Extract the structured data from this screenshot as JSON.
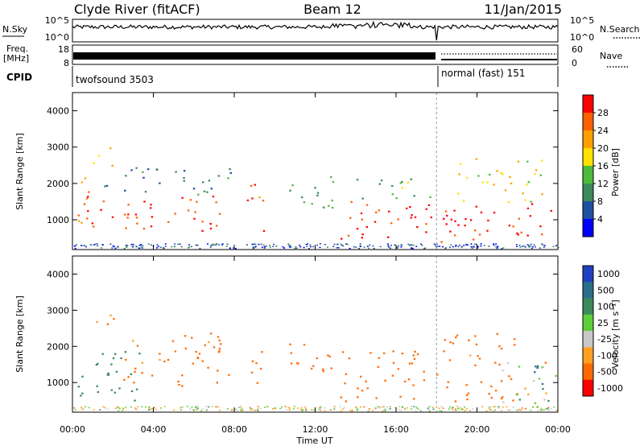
{
  "header": {
    "station": "Clyde River (fitACF)",
    "beam": "Beam 12",
    "date": "11/Jan/2015"
  },
  "sky_panel": {
    "left_label": "N.Sky",
    "right_label": "N.Search",
    "left_ticks": [
      "10^5",
      "10^0"
    ],
    "right_ticks": [
      "10^5",
      "10^0"
    ]
  },
  "freq_panel": {
    "left_label_1": "Freq.",
    "left_label_2": "[MHz]",
    "left_ticks": [
      "18",
      "8"
    ],
    "right_label": "Nave",
    "right_ticks": [
      "60",
      "0"
    ]
  },
  "cpid": {
    "label": "CPID",
    "modes": [
      {
        "name": "twofsound 3503",
        "start_h": 0,
        "end_h": 18
      },
      {
        "name": "normal (fast) 151",
        "start_h": 18,
        "end_h": 24
      }
    ]
  },
  "x_axis": {
    "label": "Time UT",
    "ticks": [
      "00:00",
      "04:00",
      "08:00",
      "12:00",
      "16:00",
      "20:00",
      "00:00"
    ]
  },
  "colors": {
    "power": [
      "#0000ff",
      "#2050a0",
      "#3a8a5a",
      "#4cbb3c",
      "#ffe000",
      "#ffa000",
      "#ff6000",
      "#ff0000"
    ],
    "velocity": [
      "#2040c0",
      "#2a6e8a",
      "#3a8a5a",
      "#5ecf3a",
      "#c8c8c8",
      "#ffa020",
      "#ff6a00",
      "#ff0000"
    ]
  },
  "chart_data": [
    {
      "type": "heatmap",
      "panel": "power",
      "title": "",
      "xlabel": "Time UT",
      "ylabel": "Slant Range [km]",
      "xlim": [
        0,
        24
      ],
      "ylim": [
        180,
        4500
      ],
      "yticks": [
        "1000",
        "2000",
        "3000",
        "4000"
      ],
      "colorbar": {
        "label": "Power [dB]",
        "range": [
          0,
          32
        ],
        "ticks": [
          "4",
          "8",
          "12",
          "16",
          "20",
          "24",
          "28"
        ]
      },
      "regions": [
        {
          "t0": 0.2,
          "t1": 1.0,
          "r0": 700,
          "r1": 2300,
          "level": 26
        },
        {
          "t0": 1.0,
          "t1": 2.2,
          "r0": 2500,
          "r1": 3100,
          "level": 22
        },
        {
          "t0": 0.5,
          "t1": 7.5,
          "r0": 700,
          "r1": 1700,
          "level": 28
        },
        {
          "t0": 1.5,
          "t1": 7.8,
          "r0": 1700,
          "r1": 2500,
          "level": 9
        },
        {
          "t0": 8.5,
          "t1": 9.5,
          "r0": 700,
          "r1": 2000,
          "level": 26
        },
        {
          "t0": 10.5,
          "t1": 13.0,
          "r0": 1300,
          "r1": 2300,
          "level": 12
        },
        {
          "t0": 13.2,
          "t1": 18.0,
          "r0": 500,
          "r1": 1600,
          "level": 29
        },
        {
          "t0": 13.8,
          "t1": 18.0,
          "r0": 1600,
          "r1": 2200,
          "level": 14
        },
        {
          "t0": 18.2,
          "t1": 24.0,
          "r0": 400,
          "r1": 1500,
          "level": 30
        },
        {
          "t0": 18.8,
          "t1": 23.3,
          "r0": 1500,
          "r1": 2700,
          "level": 19
        }
      ]
    },
    {
      "type": "heatmap",
      "panel": "velocity",
      "title": "",
      "xlabel": "Time UT",
      "ylabel": "Slant Range [km]",
      "xlim": [
        0,
        24
      ],
      "ylim": [
        180,
        4500
      ],
      "yticks": [
        "1000",
        "2000",
        "3000",
        "4000"
      ],
      "colorbar": {
        "label": "Velocity [m s⁻¹]",
        "ticks": [
          "1000",
          "500",
          "100",
          "25",
          "-25",
          "-100",
          "-500",
          "-1000"
        ]
      },
      "regions": [
        {
          "t0": 0.2,
          "t1": 3.5,
          "r0": 500,
          "r1": 1900,
          "level": 300
        },
        {
          "t0": 1.0,
          "t1": 2.2,
          "r0": 2500,
          "r1": 3100,
          "level": -150
        },
        {
          "t0": 2.5,
          "t1": 7.8,
          "r0": 900,
          "r1": 2400,
          "level": -200
        },
        {
          "t0": 8.5,
          "t1": 9.5,
          "r0": 1000,
          "r1": 2000,
          "level": -250
        },
        {
          "t0": 10.5,
          "t1": 13.0,
          "r0": 1300,
          "r1": 2300,
          "level": -300
        },
        {
          "t0": 13.2,
          "t1": 18.0,
          "r0": 500,
          "r1": 1900,
          "level": -250
        },
        {
          "t0": 18.2,
          "t1": 22.0,
          "r0": 500,
          "r1": 2400,
          "level": -200
        },
        {
          "t0": 21.0,
          "t1": 24.0,
          "r0": 400,
          "r1": 1600,
          "level": 0
        },
        {
          "t0": 22.8,
          "t1": 24.0,
          "r0": 800,
          "r1": 1500,
          "level": 800
        }
      ]
    }
  ]
}
